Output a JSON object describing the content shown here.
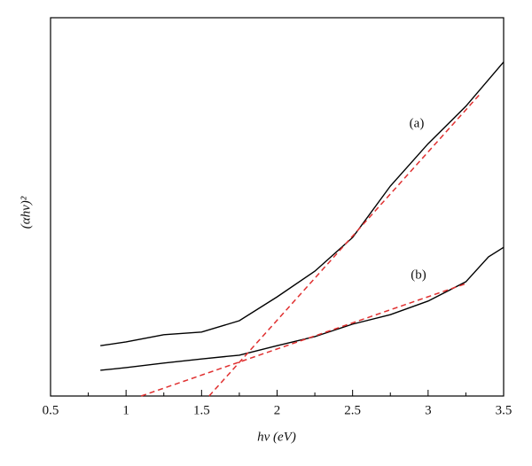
{
  "chart_data": {
    "type": "line",
    "xlabel": "hν (eV)",
    "ylabel": "(αhν)²",
    "xlim": [
      0.5,
      3.5
    ],
    "xticks": [
      0.5,
      1.0,
      1.5,
      2.0,
      2.5,
      3.0,
      3.5
    ],
    "xminor_ticks": [
      0.75,
      1.25,
      1.75,
      2.25,
      2.75,
      3.25
    ],
    "ylim": [
      0,
      10
    ],
    "series": [
      {
        "name": "(a)",
        "color": "#000000",
        "x": [
          0.83,
          1.0,
          1.25,
          1.5,
          1.75,
          2.0,
          2.25,
          2.5,
          2.75,
          3.0,
          3.25,
          3.5
        ],
        "values": [
          1.33,
          1.43,
          1.62,
          1.69,
          1.99,
          2.62,
          3.3,
          4.19,
          5.55,
          6.67,
          7.66,
          8.83
        ]
      },
      {
        "name": "(b)",
        "color": "#000000",
        "x": [
          0.83,
          1.0,
          1.25,
          1.5,
          1.75,
          2.0,
          2.25,
          2.5,
          2.75,
          3.0,
          3.25,
          3.4,
          3.5
        ],
        "values": [
          0.68,
          0.75,
          0.87,
          0.98,
          1.08,
          1.33,
          1.57,
          1.9,
          2.15,
          2.51,
          3.02,
          3.68,
          3.93
        ]
      }
    ],
    "fits": [
      {
        "color": "#e03030",
        "linestyle": "dashed",
        "x": [
          1.55,
          3.35
        ],
        "values": [
          0,
          8.01
        ]
      },
      {
        "color": "#e03030",
        "linestyle": "dashed",
        "x": [
          1.1,
          3.25
        ],
        "values": [
          0,
          2.97
        ]
      }
    ]
  }
}
